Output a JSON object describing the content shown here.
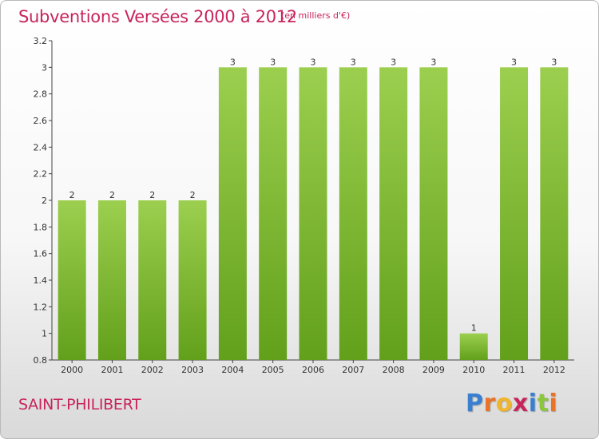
{
  "header": {
    "title": "Subventions Versées 2000 à 2012",
    "subtitle": "(en milliers d'€)"
  },
  "footer": {
    "commune": "SAINT-PHILIBERT",
    "brand_letters": [
      "P",
      "r",
      "o",
      "x",
      "i",
      "t",
      "i"
    ],
    "brand_colors": [
      "#3a7fd0",
      "#e8742a",
      "#f0b52a",
      "#c8245b",
      "#3a7fd0",
      "#8cc63f",
      "#e8742a"
    ]
  },
  "chart_data": {
    "type": "bar",
    "title": "Subventions Versées 2000 à 2012",
    "subtitle": "(en milliers d'€)",
    "categories": [
      "2000",
      "2001",
      "2002",
      "2003",
      "2004",
      "2005",
      "2006",
      "2007",
      "2008",
      "2009",
      "2010",
      "2011",
      "2012"
    ],
    "values": [
      2,
      2,
      2,
      2,
      3,
      3,
      3,
      3,
      3,
      3,
      1,
      3,
      3
    ],
    "data_labels": [
      "2",
      "2",
      "2",
      "2",
      "3",
      "3",
      "3",
      "3",
      "3",
      "3",
      "1",
      "3",
      "3"
    ],
    "ylim": [
      0.8,
      3.2
    ],
    "yticks": [
      0.8,
      1,
      1.2,
      1.4,
      1.6,
      1.8,
      2,
      2.2,
      2.4,
      2.6,
      2.8,
      3,
      3.2
    ],
    "ytick_labels": [
      "0.8",
      "1",
      "1.2",
      "1.4",
      "1.6",
      "1.8",
      "2",
      "2.2",
      "2.4",
      "2.6",
      "2.8",
      "3",
      "3.2"
    ],
    "xlabel": "",
    "ylabel": "",
    "grid": false,
    "bar_color_top": "#9ccf4f",
    "bar_color_bottom": "#62a01b"
  }
}
